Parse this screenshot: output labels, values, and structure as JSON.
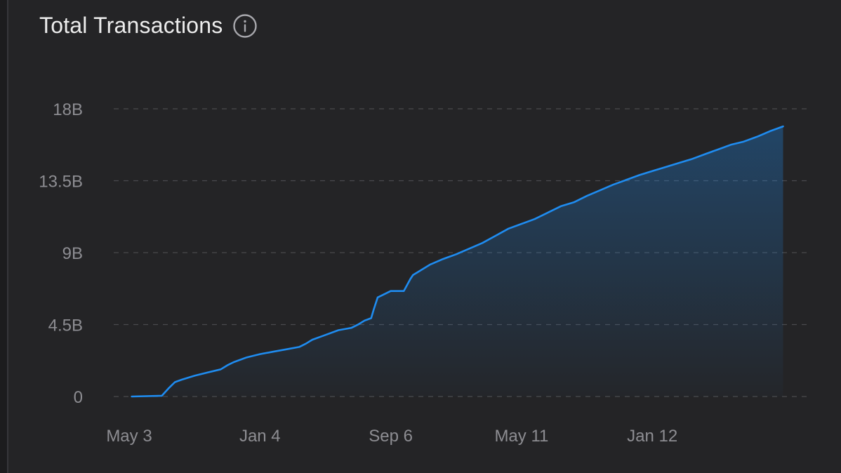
{
  "header": {
    "title": "Total Transactions",
    "info_icon": "info-circle-icon"
  },
  "colors": {
    "background": "#242426",
    "line": "#1f8cf0",
    "grid": "#4a4a4e",
    "text": "#8d8d92",
    "title": "#ececec"
  },
  "chart_data": {
    "type": "area",
    "title": "Total Transactions",
    "xlabel": "",
    "ylabel": "",
    "ylim": [
      0,
      18
    ],
    "y_unit": "B",
    "y_ticks": [
      {
        "value": 0,
        "label": "0"
      },
      {
        "value": 4.5,
        "label": "4.5B"
      },
      {
        "value": 9,
        "label": "9B"
      },
      {
        "value": 13.5,
        "label": "13.5B"
      },
      {
        "value": 18,
        "label": "18B"
      }
    ],
    "x_ticks": [
      {
        "value": 0,
        "label": "May 3"
      },
      {
        "value": 1,
        "label": "Jan 4"
      },
      {
        "value": 2,
        "label": "Sep 6"
      },
      {
        "value": 3,
        "label": "May 11"
      },
      {
        "value": 4,
        "label": "Jan 12"
      }
    ],
    "grid": true,
    "grid_style": "dashed",
    "legend": "none",
    "series": [
      {
        "x": [
          0.02,
          0.25,
          0.3,
          0.35,
          0.4,
          0.5,
          0.6,
          0.7,
          0.75,
          0.8,
          0.9,
          1.0,
          1.1,
          1.2,
          1.3,
          1.35,
          1.4,
          1.5,
          1.6,
          1.7,
          1.75,
          1.8,
          1.85,
          1.87,
          1.9,
          2.0,
          2.1,
          2.15,
          2.17,
          2.2,
          2.3,
          2.4,
          2.5,
          2.6,
          2.7,
          2.8,
          2.9,
          3.0,
          3.1,
          3.2,
          3.3,
          3.4,
          3.5,
          3.6,
          3.7,
          3.8,
          3.9,
          4.0,
          4.1,
          4.2,
          4.3,
          4.4,
          4.5,
          4.6,
          4.7,
          4.8,
          4.9,
          5.0
        ],
        "y": [
          0.0,
          0.05,
          0.5,
          0.9,
          1.05,
          1.3,
          1.5,
          1.7,
          1.95,
          2.15,
          2.45,
          2.65,
          2.8,
          2.95,
          3.1,
          3.3,
          3.55,
          3.85,
          4.15,
          4.3,
          4.5,
          4.75,
          4.9,
          5.45,
          6.2,
          6.6,
          6.6,
          7.35,
          7.6,
          7.75,
          8.25,
          8.6,
          8.9,
          9.25,
          9.6,
          10.05,
          10.5,
          10.8,
          11.1,
          11.5,
          11.9,
          12.15,
          12.55,
          12.9,
          13.25,
          13.55,
          13.85,
          14.1,
          14.35,
          14.6,
          14.85,
          15.15,
          15.45,
          15.75,
          15.95,
          16.25,
          16.6,
          16.9
        ]
      }
    ]
  }
}
